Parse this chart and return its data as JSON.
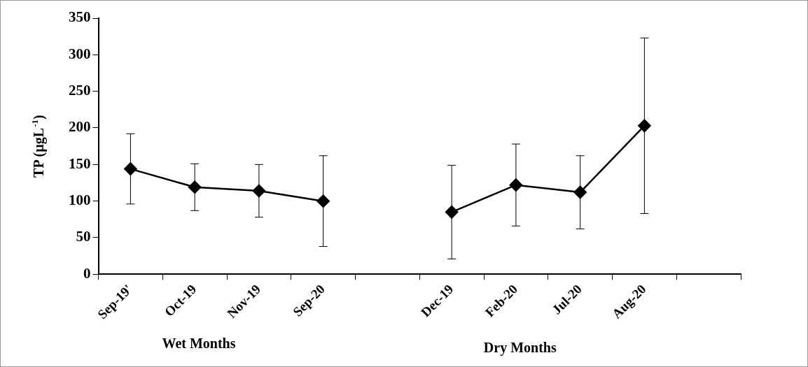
{
  "chart_data": {
    "type": "line",
    "ylabel": "TP (µgL$^{-1}$)",
    "categories": [
      "Sep-19'",
      "Oct-19",
      "Nov-19",
      "Sep-20",
      null,
      "Dec-19",
      "Feb-20",
      "Jul-20",
      "Aug-20",
      null
    ],
    "values": [
      144,
      119,
      114,
      100,
      null,
      85,
      122,
      112,
      203,
      null
    ],
    "errors": [
      48,
      32,
      36,
      62,
      null,
      64,
      56,
      50,
      120,
      null
    ],
    "color": "#000000",
    "marker": "diamond",
    "line_style": "solid",
    "ylim": [
      0,
      350
    ],
    "yticks": [
      0,
      50,
      100,
      150,
      200,
      250,
      300,
      350
    ],
    "grid": false,
    "annotations": [
      "Wet Months",
      "Dry Months"
    ]
  }
}
